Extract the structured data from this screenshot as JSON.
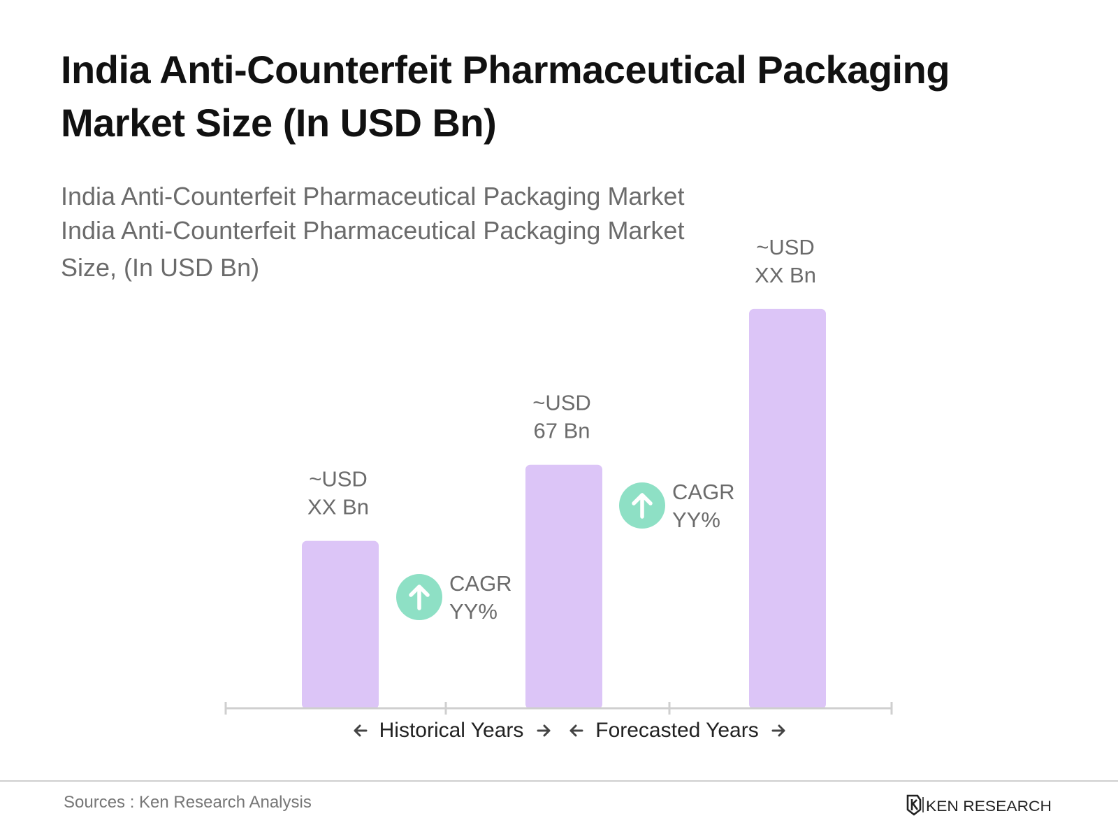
{
  "header": {
    "title": "India Anti-Counterfeit Pharmaceutical Packaging Market Size (In USD Bn)"
  },
  "subtitle_lines": [
    "India Anti-Counterfeit Pharmaceutical Packaging Market",
    "India Anti-Counterfeit Pharmaceutical Packaging Market",
    "Size, (In USD Bn)"
  ],
  "chart_data": {
    "type": "bar",
    "title": "India Anti-Counterfeit Pharmaceutical Packaging Market Size (In USD Bn)",
    "categories": [
      "",
      "",
      ""
    ],
    "values": [
      46,
      67,
      110
    ],
    "value_label_lines": [
      [
        "~USD",
        "XX Bn"
      ],
      [
        "~USD",
        "67 Bn"
      ],
      [
        "~USD",
        "XX Bn"
      ]
    ],
    "ylim": [
      0,
      120
    ],
    "grid": false,
    "bar_color": "#dcc5f7",
    "annotations": [
      {
        "between": [
          0,
          1
        ],
        "lines": [
          "CAGR",
          "YY%"
        ],
        "icon": "arrow-up-icon"
      },
      {
        "between": [
          1,
          2
        ],
        "lines": [
          "CAGR",
          "YY%"
        ],
        "icon": "arrow-up-icon"
      }
    ],
    "period_labels": [
      {
        "text": "Historical Years",
        "range": [
          0,
          1
        ]
      },
      {
        "text": "Forecasted Years",
        "range": [
          1,
          2
        ]
      }
    ],
    "accent_color": "#8ee0c5"
  },
  "footer": {
    "source": "Sources : Ken Research Analysis",
    "logo_text": "KEN RESEARCH"
  }
}
